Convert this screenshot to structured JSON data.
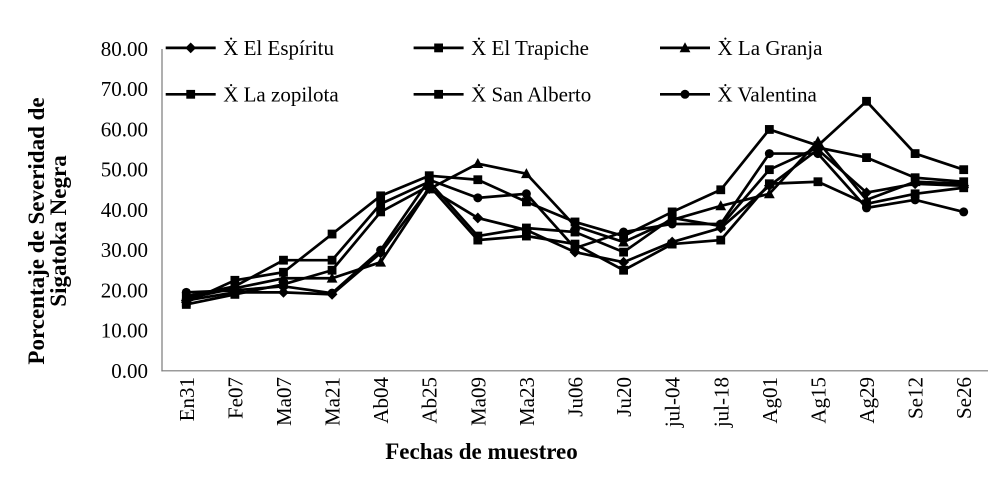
{
  "figure": {
    "background": "#ffffff",
    "ink_color": "#000000",
    "axis_line_color": "#7a7a7a"
  },
  "chart_data": {
    "type": "line",
    "title": "",
    "xlabel": "Fechas de muestreo",
    "ylabel": "Porcentaje de Severidad de Sigatoka Negra",
    "ylabel_lines": [
      "Porcentaje de Severidad de",
      "Sigatoka Negra"
    ],
    "ylim": [
      0,
      80
    ],
    "ytick_step": 10,
    "ytick_labels": [
      "0.00",
      "10.00",
      "20.00",
      "30.00",
      "40.00",
      "50.00",
      "60.00",
      "70.00",
      "80.00"
    ],
    "grid": false,
    "legend_position": "top",
    "legend_rows": 2,
    "legend_columns": 3,
    "categories": [
      "En31",
      "Fe07",
      "Ma07",
      "Ma21",
      "Ab04",
      "Ab25",
      "Ma09",
      "Ma23",
      "Ju06",
      "Ju20",
      "jul-04",
      "jul-18",
      "Ag01",
      "Ag15",
      "Ag29",
      "Se12",
      "Se26"
    ],
    "series": [
      {
        "name": "Ẋ El Espíritu",
        "marker": "diamond",
        "values": [
          17.5,
          19.5,
          19.5,
          19.0,
          29.3,
          45.3,
          38.0,
          35.0,
          29.5,
          27.0,
          32.0,
          35.5,
          46.0,
          55.0,
          44.3,
          46.5,
          46.0
        ]
      },
      {
        "name": "Ẋ El Trapiche",
        "marker": "square",
        "values": [
          18.5,
          21.0,
          27.5,
          27.5,
          41.5,
          47.0,
          33.5,
          35.5,
          34.5,
          29.5,
          38.0,
          36.0,
          50.0,
          55.5,
          53.0,
          48.0,
          47.0
        ]
      },
      {
        "name": "Ẋ La Granja",
        "marker": "triangle",
        "values": [
          18.0,
          20.5,
          23.0,
          23.0,
          27.0,
          45.2,
          51.5,
          49.0,
          36.0,
          32.0,
          37.5,
          41.0,
          44.0,
          57.0,
          42.5,
          47.0,
          46.5
        ]
      },
      {
        "name": "Ẋ La zopilota",
        "marker": "square",
        "values": [
          17.0,
          22.5,
          24.5,
          34.0,
          43.5,
          48.5,
          47.5,
          42.0,
          37.0,
          33.5,
          39.5,
          45.0,
          60.0,
          56.0,
          67.0,
          54.0,
          50.0
        ]
      },
      {
        "name": "Ẋ San Alberto",
        "marker": "square",
        "values": [
          16.5,
          19.0,
          21.5,
          25.0,
          39.5,
          46.0,
          32.5,
          33.5,
          31.5,
          25.0,
          31.5,
          32.5,
          46.5,
          47.0,
          41.5,
          44.0,
          45.5
        ]
      },
      {
        "name": "Ẋ Valentina",
        "marker": "circle",
        "values": [
          19.5,
          20.0,
          21.0,
          19.3,
          30.0,
          47.5,
          43.0,
          44.0,
          30.5,
          34.5,
          36.5,
          36.5,
          54.0,
          54.0,
          40.5,
          42.5,
          39.5
        ]
      }
    ]
  }
}
